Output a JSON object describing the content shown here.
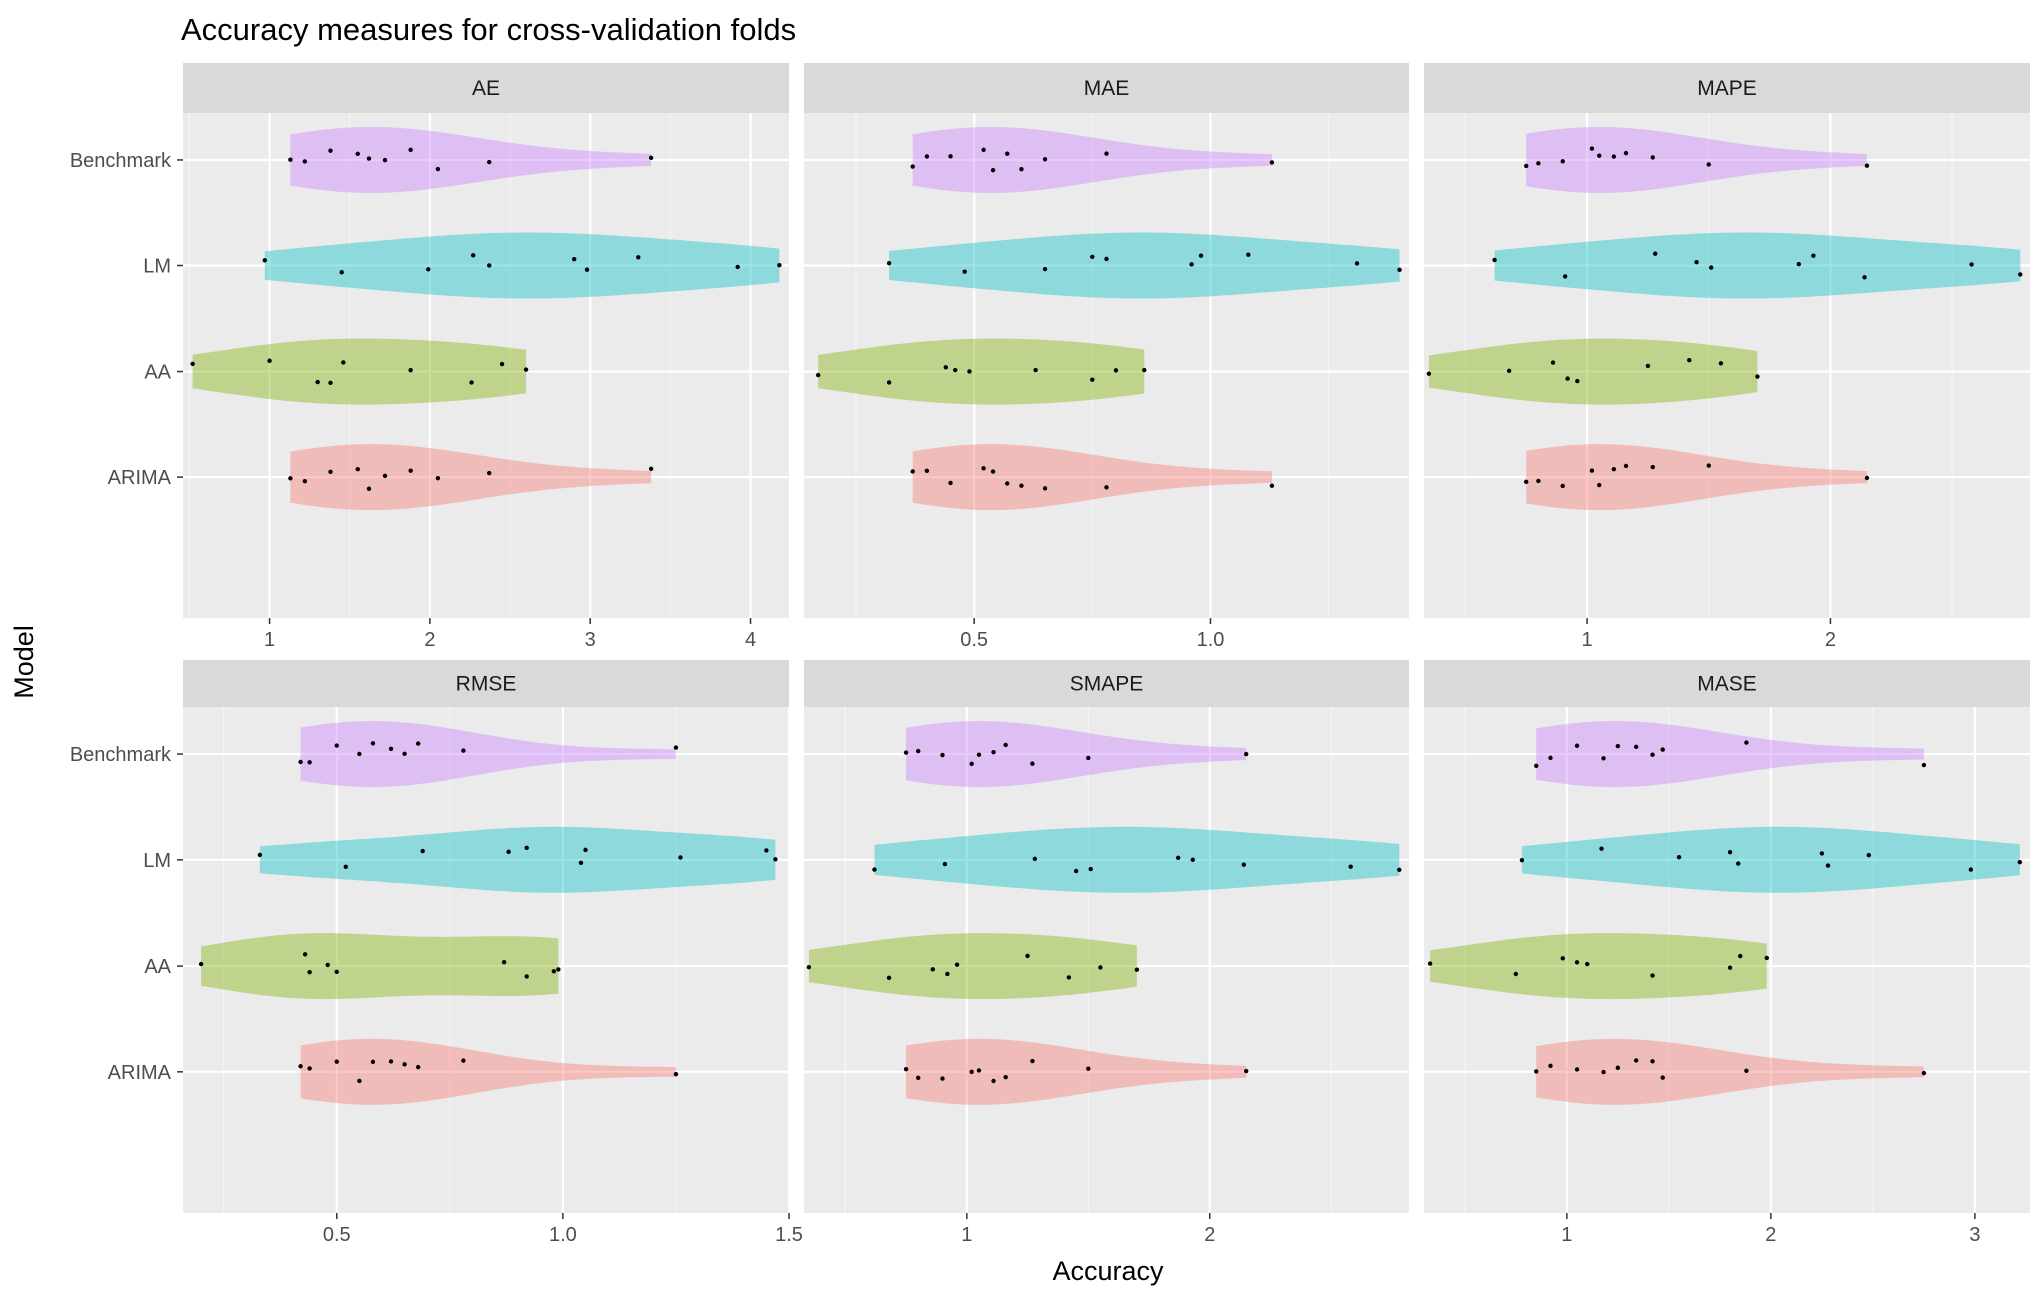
{
  "colors": {
    "panel_bg": "#EBEBEB",
    "strip_bg": "#D9D9D9",
    "grid_major": "#FFFFFF",
    "grid_minor": "#F5F5F5",
    "point": "#000000",
    "model_fills": {
      "Benchmark": "#C77CFF",
      "LM": "#00BFC4",
      "AA": "#7CAE00",
      "ARIMA": "#F8766D"
    }
  },
  "chart_data": {
    "type": "violin",
    "title": "Accuracy measures for cross-validation folds",
    "xlabel": "Accuracy",
    "ylabel": "Model",
    "categories": [
      "Benchmark",
      "LM",
      "AA",
      "ARIMA"
    ],
    "coord_flip": true,
    "free_x": true,
    "fill_alpha": 0.4,
    "grid": true,
    "legend": "none",
    "panels": [
      {
        "name": "AE",
        "xlim": [
          0.46,
          4.24
        ],
        "ticks": [
          1,
          2,
          3,
          4
        ],
        "tick_labels": [
          "1",
          "2",
          "3",
          "4"
        ],
        "series": [
          {
            "name": "Benchmark",
            "values": [
              1.13,
              1.22,
              1.38,
              1.55,
              1.62,
              1.72,
              1.88,
              2.05,
              2.37,
              3.38
            ]
          },
          {
            "name": "LM",
            "values": [
              0.97,
              1.45,
              1.99,
              2.27,
              2.37,
              2.9,
              2.98,
              3.3,
              3.92,
              4.18
            ]
          },
          {
            "name": "AA",
            "values": [
              0.52,
              1.0,
              1.3,
              1.38,
              1.46,
              1.88,
              2.26,
              2.45,
              2.6
            ]
          },
          {
            "name": "ARIMA",
            "values": [
              1.13,
              1.22,
              1.38,
              1.55,
              1.62,
              1.72,
              1.88,
              2.05,
              2.37,
              3.38
            ]
          }
        ]
      },
      {
        "name": "MAE",
        "xlim": [
          0.14,
          1.42
        ],
        "ticks": [
          0.5,
          1.0
        ],
        "tick_labels": [
          "0.5",
          "1.0"
        ],
        "series": [
          {
            "name": "Benchmark",
            "values": [
              0.37,
              0.4,
              0.45,
              0.52,
              0.54,
              0.57,
              0.6,
              0.65,
              0.78,
              1.13
            ]
          },
          {
            "name": "LM",
            "values": [
              0.32,
              0.48,
              0.65,
              0.75,
              0.78,
              0.96,
              0.98,
              1.08,
              1.31,
              1.4
            ]
          },
          {
            "name": "AA",
            "values": [
              0.17,
              0.32,
              0.44,
              0.46,
              0.49,
              0.63,
              0.75,
              0.8,
              0.86
            ]
          },
          {
            "name": "ARIMA",
            "values": [
              0.37,
              0.4,
              0.45,
              0.52,
              0.54,
              0.57,
              0.6,
              0.65,
              0.78,
              1.13
            ]
          }
        ]
      },
      {
        "name": "MAPE",
        "xlim": [
          0.33,
          2.82
        ],
        "ticks": [
          1,
          2
        ],
        "tick_labels": [
          "1",
          "2"
        ],
        "series": [
          {
            "name": "Benchmark",
            "values": [
              0.75,
              0.8,
              0.9,
              1.02,
              1.05,
              1.11,
              1.16,
              1.27,
              1.5,
              2.15
            ]
          },
          {
            "name": "LM",
            "values": [
              0.62,
              0.91,
              1.28,
              1.45,
              1.51,
              1.87,
              1.93,
              2.14,
              2.58,
              2.78
            ]
          },
          {
            "name": "AA",
            "values": [
              0.35,
              0.68,
              0.86,
              0.92,
              0.96,
              1.25,
              1.42,
              1.55,
              1.7
            ]
          },
          {
            "name": "ARIMA",
            "values": [
              0.75,
              0.8,
              0.9,
              1.02,
              1.05,
              1.11,
              1.16,
              1.27,
              1.5,
              2.15
            ]
          }
        ]
      },
      {
        "name": "RMSE",
        "xlim": [
          0.16,
          1.5
        ],
        "ticks": [
          0.5,
          1.0,
          1.5
        ],
        "tick_labels": [
          "0.5",
          "1.0",
          "1.5"
        ],
        "series": [
          {
            "name": "Benchmark",
            "values": [
              0.42,
              0.44,
              0.5,
              0.55,
              0.58,
              0.62,
              0.65,
              0.68,
              0.78,
              1.25
            ]
          },
          {
            "name": "LM",
            "values": [
              0.33,
              0.52,
              0.69,
              0.88,
              0.92,
              1.04,
              1.05,
              1.26,
              1.45,
              1.47
            ]
          },
          {
            "name": "AA",
            "values": [
              0.2,
              0.43,
              0.44,
              0.48,
              0.5,
              0.87,
              0.92,
              0.98,
              0.99
            ]
          },
          {
            "name": "ARIMA",
            "values": [
              0.42,
              0.44,
              0.5,
              0.55,
              0.58,
              0.62,
              0.65,
              0.68,
              0.78,
              1.25
            ]
          }
        ]
      },
      {
        "name": "SMAPE",
        "xlim": [
          0.33,
          2.82
        ],
        "ticks": [
          1,
          2
        ],
        "tick_labels": [
          "1",
          "2"
        ],
        "series": [
          {
            "name": "Benchmark",
            "values": [
              0.75,
              0.8,
              0.9,
              1.02,
              1.05,
              1.11,
              1.16,
              1.27,
              1.5,
              2.15
            ]
          },
          {
            "name": "LM",
            "values": [
              0.62,
              0.91,
              1.28,
              1.45,
              1.51,
              1.87,
              1.93,
              2.14,
              2.58,
              2.78
            ]
          },
          {
            "name": "AA",
            "values": [
              0.35,
              0.68,
              0.86,
              0.92,
              0.96,
              1.25,
              1.42,
              1.55,
              1.7
            ]
          },
          {
            "name": "ARIMA",
            "values": [
              0.75,
              0.8,
              0.9,
              1.02,
              1.05,
              1.11,
              1.16,
              1.27,
              1.5,
              2.15
            ]
          }
        ]
      },
      {
        "name": "MASE",
        "xlim": [
          0.3,
          3.27
        ],
        "ticks": [
          1,
          2,
          3
        ],
        "tick_labels": [
          "1",
          "2",
          "3"
        ],
        "series": [
          {
            "name": "Benchmark",
            "values": [
              0.85,
              0.92,
              1.05,
              1.18,
              1.25,
              1.34,
              1.42,
              1.47,
              1.88,
              2.75
            ]
          },
          {
            "name": "LM",
            "values": [
              0.78,
              1.17,
              1.55,
              1.8,
              1.84,
              2.25,
              2.28,
              2.48,
              2.98,
              3.22
            ]
          },
          {
            "name": "AA",
            "values": [
              0.33,
              0.75,
              0.98,
              1.05,
              1.1,
              1.42,
              1.8,
              1.85,
              1.98
            ]
          },
          {
            "name": "ARIMA",
            "values": [
              0.85,
              0.92,
              1.05,
              1.18,
              1.25,
              1.34,
              1.42,
              1.47,
              1.88,
              2.75
            ]
          }
        ]
      }
    ]
  }
}
